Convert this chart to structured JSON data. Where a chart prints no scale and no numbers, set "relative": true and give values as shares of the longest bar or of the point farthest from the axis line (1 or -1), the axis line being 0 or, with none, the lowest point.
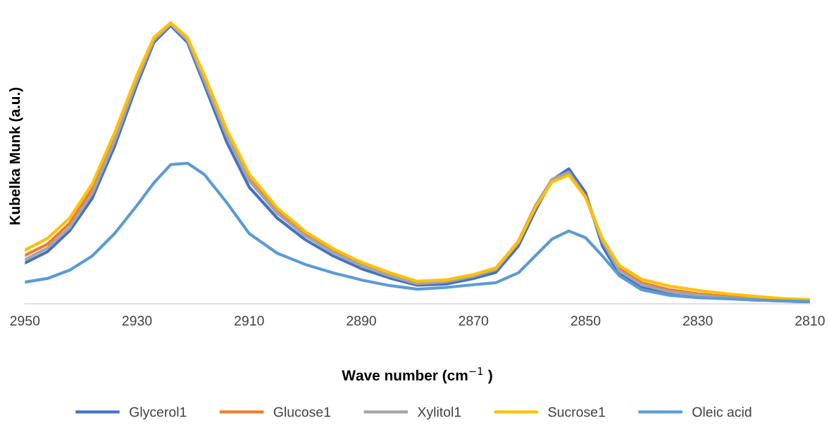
{
  "chart_data": {
    "type": "line",
    "relative": true,
    "xlabel": "Wave number (cm$^{−1}$ )",
    "ylabel": "Kubelka Munk (a.u.)",
    "xlim": [
      2950,
      2810
    ],
    "xticks": [
      2950,
      2930,
      2910,
      2890,
      2870,
      2850,
      2830,
      2810
    ],
    "grid": false,
    "legend": "bottom",
    "marker": "none",
    "line_style": "solid",
    "x": [
      2950,
      2946,
      2942,
      2938,
      2934,
      2930,
      2927,
      2924,
      2921,
      2918,
      2914,
      2910,
      2905,
      2900,
      2895,
      2890,
      2885,
      2880,
      2875,
      2870,
      2866,
      2862,
      2859,
      2856,
      2853,
      2850,
      2847,
      2844,
      2840,
      2835,
      2830,
      2825,
      2820,
      2815,
      2810
    ],
    "series": [
      {
        "name": "Glycerol1",
        "color": "#4472c4",
        "values": [
          0.145,
          0.185,
          0.26,
          0.375,
          0.56,
          0.78,
          0.93,
          0.99,
          0.93,
          0.78,
          0.575,
          0.415,
          0.305,
          0.228,
          0.17,
          0.125,
          0.092,
          0.066,
          0.07,
          0.09,
          0.112,
          0.205,
          0.33,
          0.44,
          0.48,
          0.395,
          0.205,
          0.105,
          0.06,
          0.038,
          0.027,
          0.02,
          0.014,
          0.01,
          0.007
        ]
      },
      {
        "name": "Glucose1",
        "color": "#ed7d31",
        "values": [
          0.172,
          0.212,
          0.287,
          0.408,
          0.592,
          0.805,
          0.942,
          0.997,
          0.942,
          0.805,
          0.605,
          0.445,
          0.33,
          0.248,
          0.188,
          0.141,
          0.104,
          0.076,
          0.082,
          0.102,
          0.126,
          0.222,
          0.347,
          0.442,
          0.465,
          0.382,
          0.228,
          0.125,
          0.075,
          0.05,
          0.036,
          0.027,
          0.02,
          0.014,
          0.011
        ]
      },
      {
        "name": "Xylitol1",
        "color": "#a5a5a5",
        "values": [
          0.157,
          0.198,
          0.272,
          0.392,
          0.578,
          0.795,
          0.938,
          0.995,
          0.938,
          0.795,
          0.598,
          0.438,
          0.322,
          0.242,
          0.182,
          0.136,
          0.1,
          0.072,
          0.078,
          0.098,
          0.122,
          0.218,
          0.345,
          0.442,
          0.468,
          0.38,
          0.222,
          0.118,
          0.068,
          0.043,
          0.03,
          0.022,
          0.016,
          0.011,
          0.008
        ]
      },
      {
        "name": "Sucrose1",
        "color": "#ffc000",
        "values": [
          0.191,
          0.232,
          0.305,
          0.426,
          0.608,
          0.814,
          0.947,
          1.0,
          0.947,
          0.814,
          0.62,
          0.462,
          0.341,
          0.257,
          0.196,
          0.148,
          0.111,
          0.08,
          0.085,
          0.104,
          0.128,
          0.22,
          0.341,
          0.433,
          0.458,
          0.378,
          0.232,
          0.136,
          0.087,
          0.063,
          0.048,
          0.036,
          0.027,
          0.019,
          0.015
        ]
      },
      {
        "name": "Oleic acid",
        "color": "#5b9bd5",
        "values": [
          0.077,
          0.09,
          0.12,
          0.17,
          0.25,
          0.35,
          0.43,
          0.495,
          0.5,
          0.46,
          0.36,
          0.25,
          0.18,
          0.14,
          0.11,
          0.085,
          0.065,
          0.052,
          0.058,
          0.068,
          0.075,
          0.11,
          0.17,
          0.23,
          0.259,
          0.235,
          0.17,
          0.1,
          0.05,
          0.03,
          0.022,
          0.018,
          0.014,
          0.011,
          0.008
        ]
      }
    ]
  }
}
